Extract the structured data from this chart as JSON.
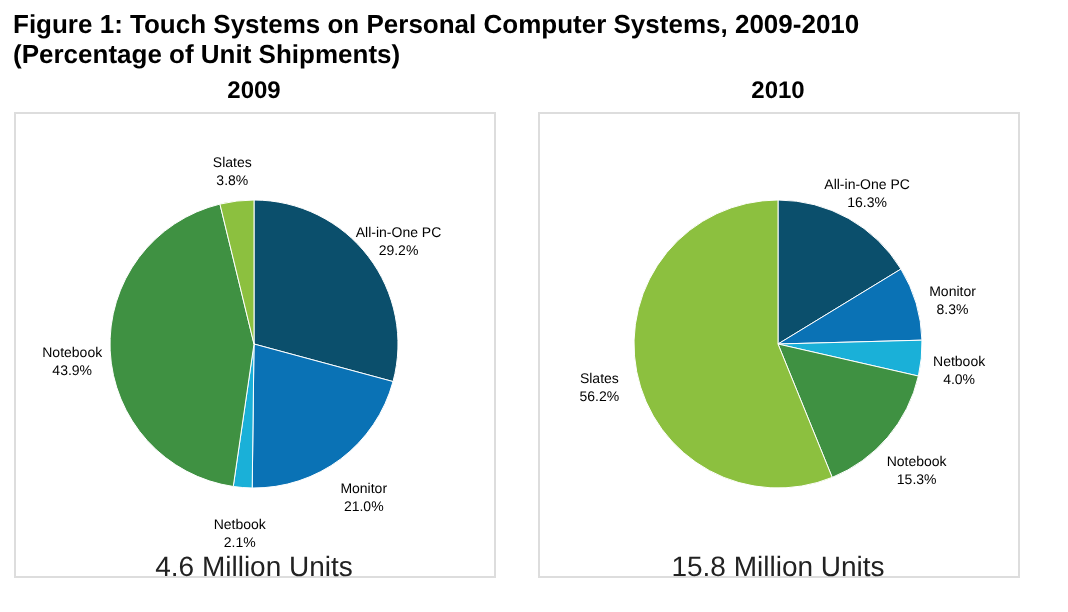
{
  "chart_data": [
    {
      "type": "pie",
      "title": "Figure 1: Touch Systems on Personal Computer Systems, 2009-2010 (Percentage of Unit Shipments)",
      "subtitle": "2009",
      "categories": [
        "All-in-One PC",
        "Monitor",
        "Netbook",
        "Notebook",
        "Slates"
      ],
      "values": [
        29.2,
        21.0,
        2.1,
        43.9,
        3.8
      ],
      "value_labels": [
        "29.2%",
        "21.0%",
        "2.1%",
        "43.9%",
        "3.8%"
      ],
      "colors": [
        "#0b4f6c",
        "#0a72b5",
        "#1ab0d8",
        "#3f9142",
        "#8cc03f"
      ],
      "annotations": [
        "4.6 Million Units"
      ]
    },
    {
      "type": "pie",
      "subtitle": "2010",
      "categories": [
        "All-in-One PC",
        "Monitor",
        "Netbook",
        "Notebook",
        "Slates"
      ],
      "values": [
        16.3,
        8.3,
        4.0,
        15.3,
        56.2
      ],
      "value_labels": [
        "16.3%",
        "8.3%",
        "4.0%",
        "15.3%",
        "56.2%"
      ],
      "colors": [
        "#0b4f6c",
        "#0a72b5",
        "#1ab0d8",
        "#3f9142",
        "#8cc03f"
      ],
      "annotations": [
        "15.8 Million Units"
      ]
    }
  ]
}
